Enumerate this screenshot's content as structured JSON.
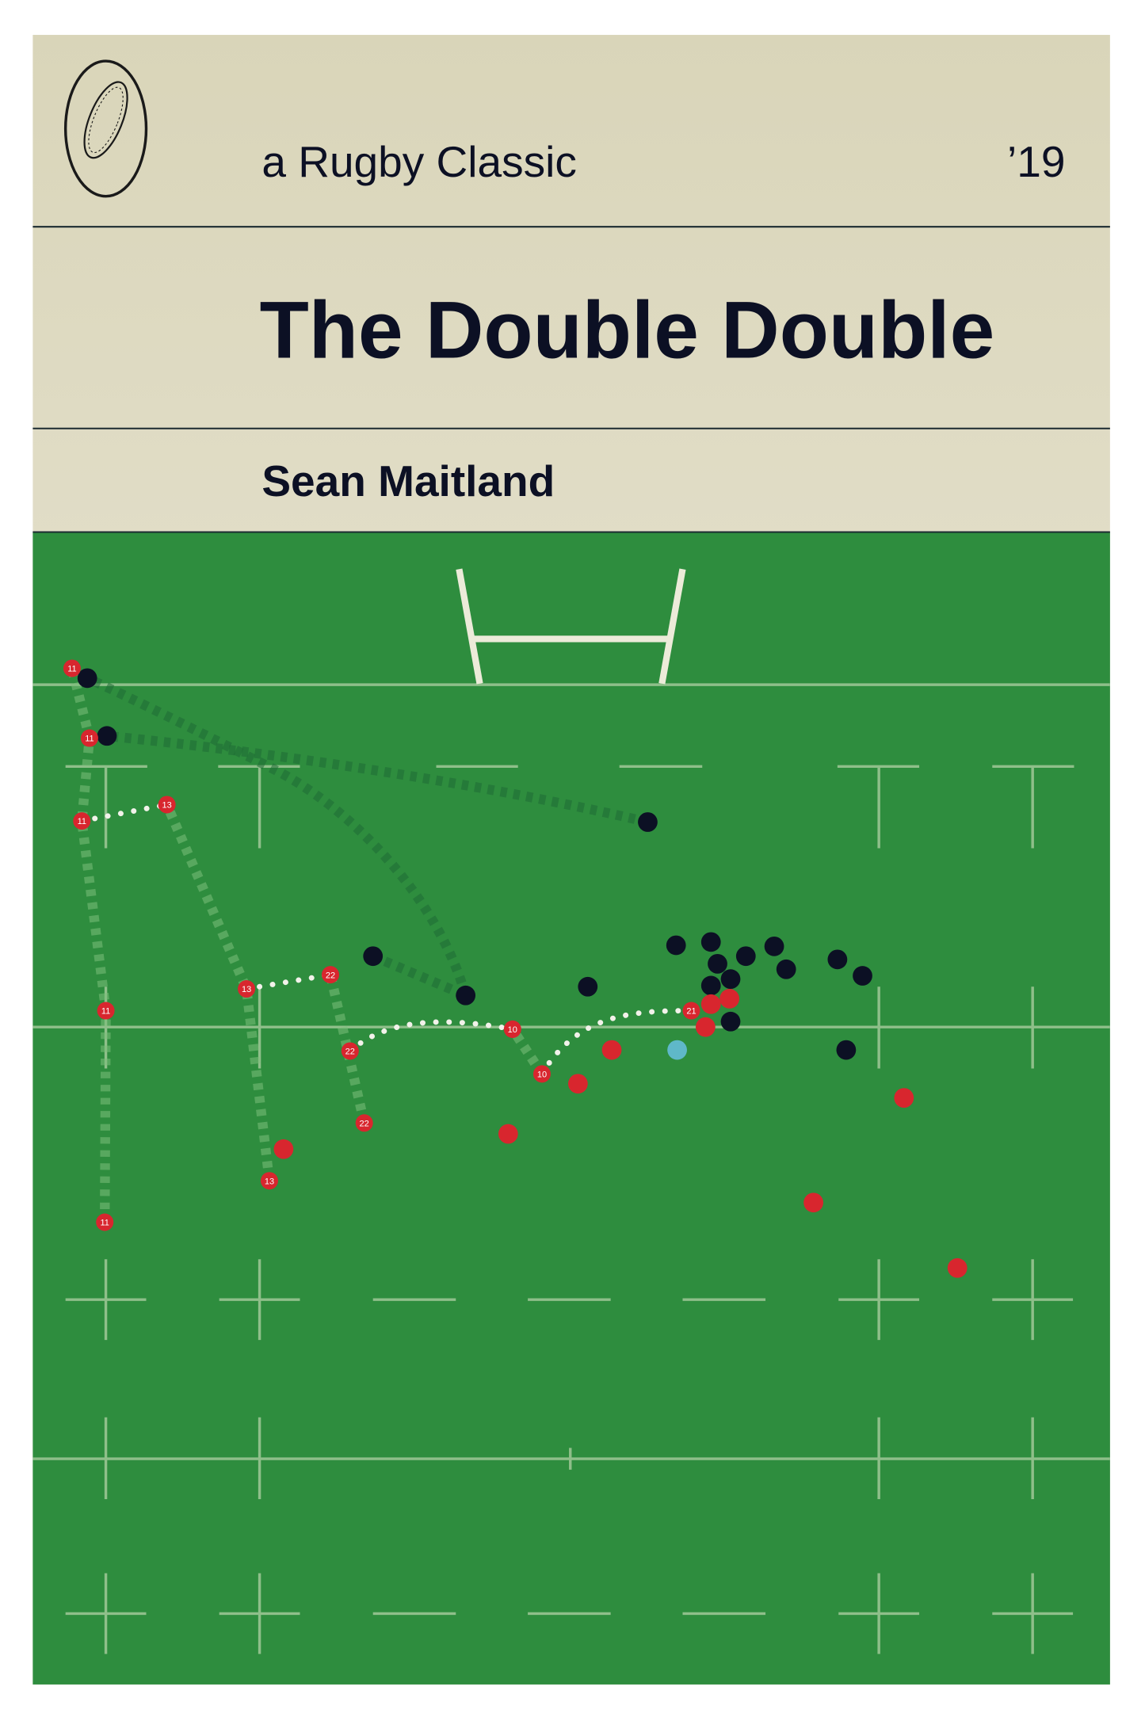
{
  "header": {
    "series": "a Rugby Classic",
    "year": "’19",
    "title": "The Double Double",
    "author": "Sean Maitland",
    "logo_icon": "rugby-ball-icon"
  },
  "colors": {
    "paper": "#e4e0cb",
    "ink": "#0c1024",
    "pitch": "#2e8d3e",
    "pitch_lines": "#8fbf8a",
    "attacker": "#d8262e",
    "defender": "#0c1024",
    "ball": "#5fb8c9"
  },
  "players": {
    "labels": [
      "11",
      "11",
      "11",
      "13",
      "13",
      "22",
      "22",
      "22",
      "10",
      "10",
      "21",
      "11",
      "11",
      "13"
    ]
  }
}
